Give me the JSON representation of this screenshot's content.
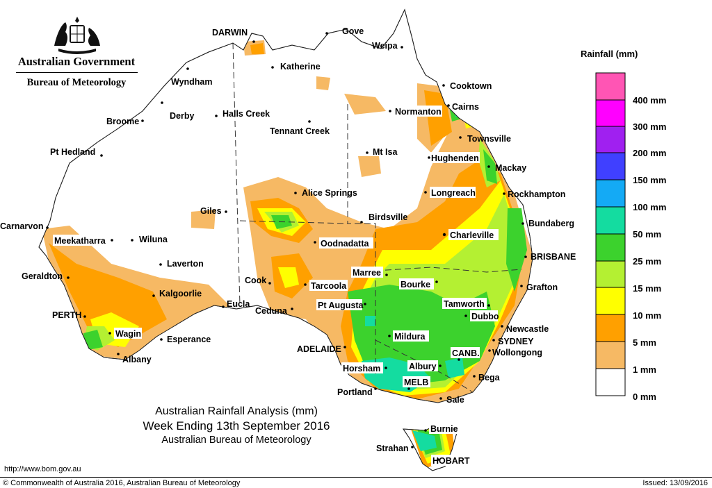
{
  "header": {
    "government": "Australian Government",
    "bureau": "Bureau of Meteorology"
  },
  "title": {
    "line1": "Australian Rainfall Analysis (mm)",
    "line2": "Week Ending 13th September 2016",
    "line3": "Australian Bureau of Meteorology"
  },
  "footer": {
    "url": "http://www.bom.gov.au",
    "copyright": "© Commonwealth of Australia 2016, Australian Bureau of Meteorology",
    "issued": "Issued: 13/09/2016"
  },
  "legend": {
    "title": "Rainfall (mm)",
    "colors": {
      "400 mm": "#ff55b4",
      "300 mm": "#ff00ff",
      "200 mm": "#a020f0",
      "150 mm": "#4040ff",
      "100 mm": "#14aaf5",
      "50 mm": "#14dca0",
      "25 mm": "#3cd22d",
      "15 mm": "#b4f032",
      "10 mm": "#ffff00",
      "5 mm": "#ffa000",
      "1 mm": "#f6b964",
      "0 mm": "#ffffff"
    },
    "labels": [
      "400 mm",
      "300 mm",
      "200 mm",
      "150 mm",
      "100 mm",
      "50 mm",
      "25 mm",
      "15 mm",
      "10 mm",
      "5 mm",
      "1 mm",
      "0 mm"
    ]
  },
  "places": {
    "darwin": "DARWIN",
    "gove": "Gove",
    "weipa": "Weipa",
    "katherine": "Katherine",
    "wyndham": "Wyndham",
    "cooktown": "Cooktown",
    "cairns": "Cairns",
    "normanton": "Normanton",
    "broome": "Broome",
    "derby": "Derby",
    "halls_creek": "Halls Creek",
    "tennant_creek": "Tennant Creek",
    "townsville": "Townsville",
    "pt_hedland": "Pt Hedland",
    "mt_isa": "Mt Isa",
    "hughenden": "Hughenden",
    "mackay": "Mackay",
    "alice_springs": "Alice Springs",
    "longreach": "Longreach",
    "rockhampton": "Rockhampton",
    "giles": "Giles",
    "birdsville": "Birdsville",
    "bundaberg": "Bundaberg",
    "carnarvon": "Carnarvon",
    "meekatharra": "Meekatharra",
    "wiluna": "Wiluna",
    "oodnadatta": "Oodnadatta",
    "charleville": "Charleville",
    "brisbane": "BRISBANE",
    "laverton": "Laverton",
    "geraldton": "Geraldton",
    "cook": "Cook",
    "marree": "Marree",
    "tarcoola": "Tarcoola",
    "bourke": "Bourke",
    "grafton": "Grafton",
    "kalgoorlie": "Kalgoorlie",
    "eucla": "Eucla",
    "pt_augusta": "Pt Augusta",
    "ceduna": "Ceduna",
    "tamworth": "Tamworth",
    "perth": "PERTH",
    "dubbo": "Dubbo",
    "wagin": "Wagin",
    "newcastle": "Newcastle",
    "esperance": "Esperance",
    "mildura": "Mildura",
    "sydney": "SYDNEY",
    "adelaide": "ADELAIDE",
    "canb": "CANB.",
    "wollongong": "Wollongong",
    "albany": "Albany",
    "horsham": "Horsham",
    "albury": "Albury",
    "bega": "Bega",
    "melb": "MELB",
    "portland": "Portland",
    "sale": "Sale",
    "burnie": "Burnie",
    "strahan": "Strahan",
    "hobart": "HOBART"
  }
}
